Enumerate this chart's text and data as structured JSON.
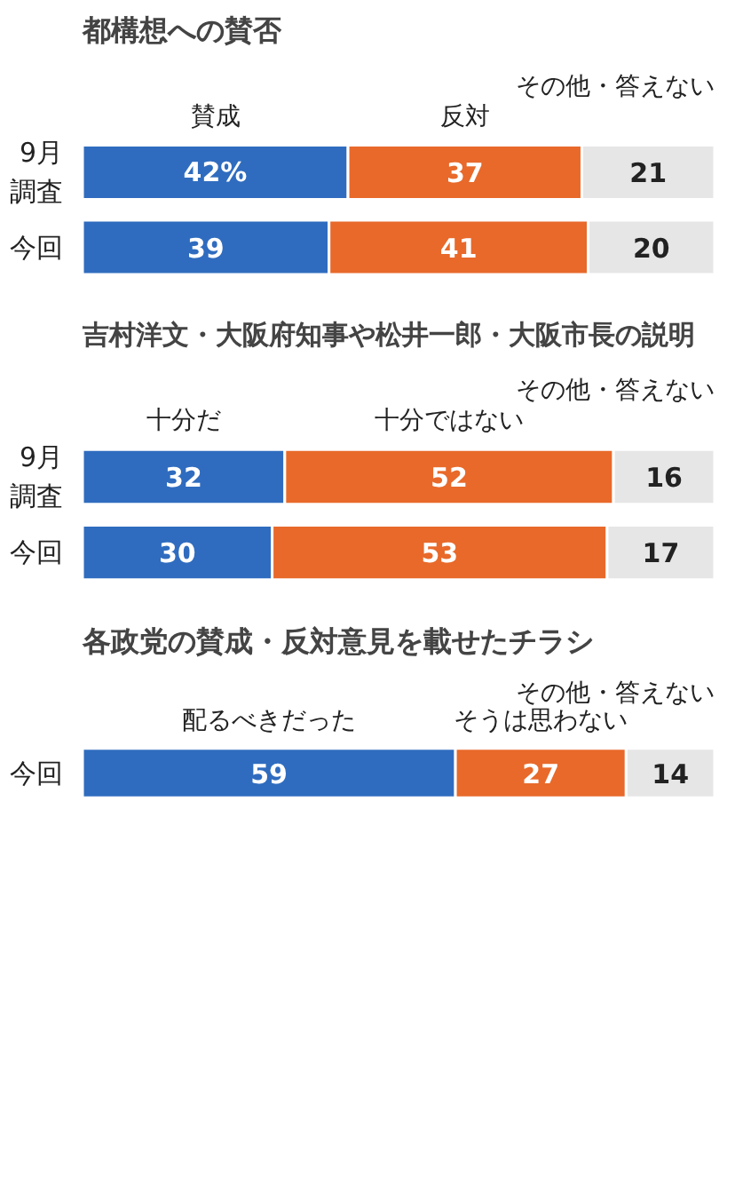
{
  "chart_data": [
    {
      "type": "bar",
      "title": "都構想への賛否",
      "orientation": "horizontal",
      "stacked": true,
      "categories": [
        "9月調査",
        "今回"
      ],
      "xlim": [
        0,
        100
      ],
      "tick_labels": "y",
      "grid": false,
      "legend": false,
      "series": [
        {
          "name": "賛成",
          "color": "#2f6cbf",
          "values": [
            42,
            39
          ],
          "value_labels": [
            "42%",
            "39"
          ]
        },
        {
          "name": "反対",
          "color": "#e8692a",
          "values": [
            37,
            41
          ],
          "value_labels": [
            "37",
            "41"
          ]
        },
        {
          "name": "その他・答えない",
          "color": "#e6e6e6",
          "values": [
            21,
            20
          ],
          "value_labels": [
            "21",
            "20"
          ]
        }
      ]
    },
    {
      "type": "bar",
      "title": "吉村洋文・大阪府知事や松井一郎・大阪市長の説明",
      "orientation": "horizontal",
      "stacked": true,
      "categories": [
        "9月調査",
        "今回"
      ],
      "xlim": [
        0,
        100
      ],
      "tick_labels": "y",
      "grid": false,
      "legend": false,
      "series": [
        {
          "name": "十分だ",
          "color": "#2f6cbf",
          "values": [
            32,
            30
          ],
          "value_labels": [
            "32",
            "30"
          ]
        },
        {
          "name": "十分ではない",
          "color": "#e8692a",
          "values": [
            52,
            53
          ],
          "value_labels": [
            "52",
            "53"
          ]
        },
        {
          "name": "その他・答えない",
          "color": "#e6e6e6",
          "values": [
            16,
            17
          ],
          "value_labels": [
            "16",
            "17"
          ]
        }
      ]
    },
    {
      "type": "bar",
      "title": "各政党の賛成・反対意見を載せたチラシ",
      "orientation": "horizontal",
      "stacked": true,
      "categories": [
        "今回"
      ],
      "xlim": [
        0,
        100
      ],
      "tick_labels": "y",
      "grid": false,
      "legend": false,
      "series": [
        {
          "name": "配るべきだった",
          "color": "#2f6cbf",
          "values": [
            59
          ],
          "value_labels": [
            "59"
          ]
        },
        {
          "name": "そうは思わない",
          "color": "#e8692a",
          "values": [
            27
          ],
          "value_labels": [
            "27"
          ]
        },
        {
          "name": "その他・答えない",
          "color": "#e6e6e6",
          "values": [
            14
          ],
          "value_labels": [
            "14"
          ]
        }
      ]
    }
  ]
}
